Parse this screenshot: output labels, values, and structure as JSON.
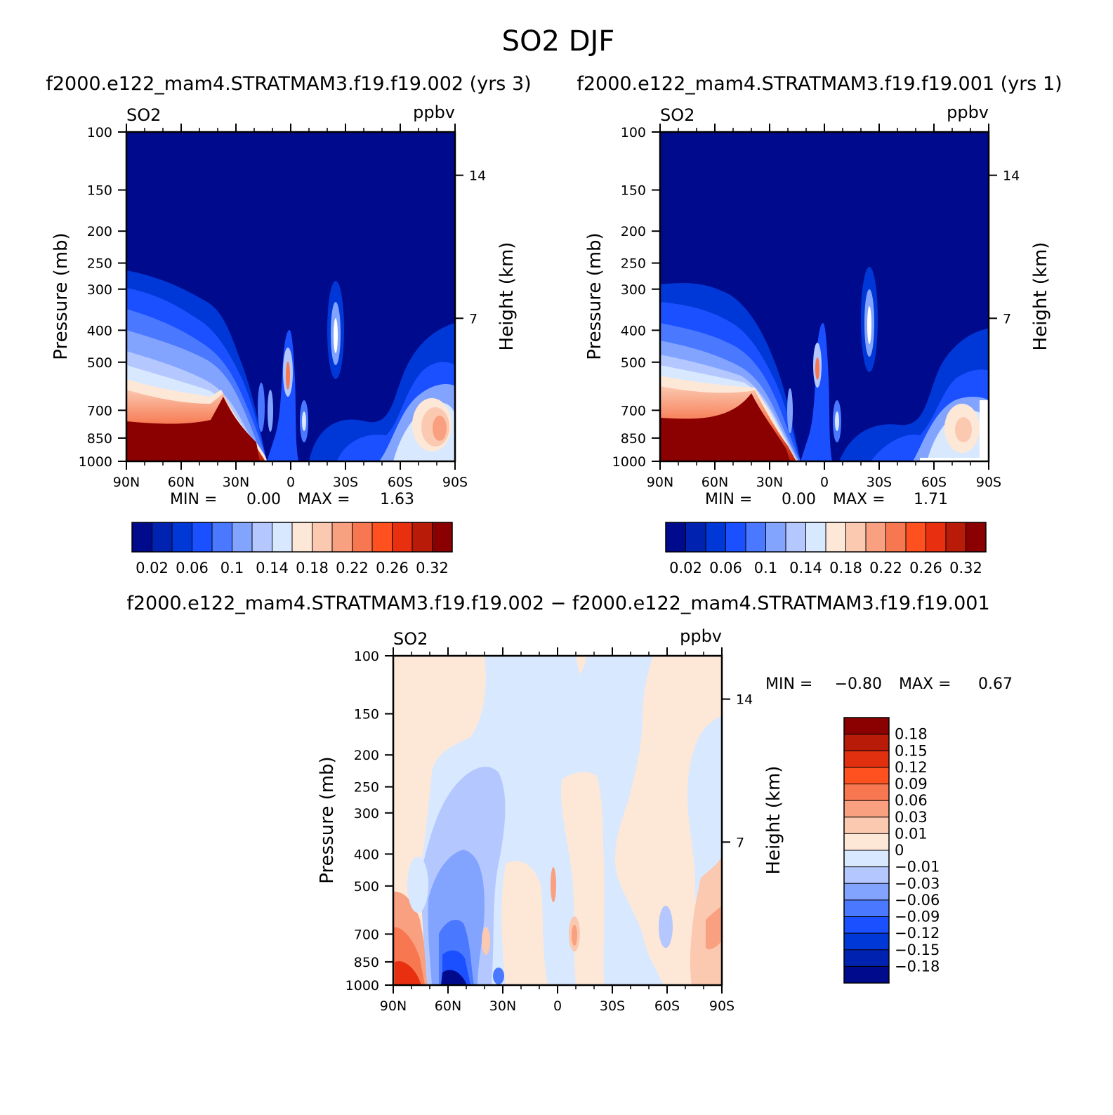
{
  "page": {
    "title": "SO2 DJF",
    "case_a": "f2000.e122_mam4.STRATMAM3.f19.f19.002",
    "case_b": "f2000.e122_mam4.STRATMAM3.f19.f19.001",
    "panel_a_title": "f2000.e122_mam4.STRATMAM3.f19.f19.002  (yrs  3)",
    "panel_b_title": "f2000.e122_mam4.STRATMAM3.f19.f19.001  (yrs  1)",
    "diff_title": "f2000.e122_mam4.STRATMAM3.f19.f19.002  −  f2000.e122_mam4.STRATMAM3.f19.f19.001"
  },
  "chart_data": [
    {
      "id": "panel_a",
      "type": "heatmap",
      "variable": "SO2",
      "units": "ppbv",
      "ylabel": "Pressure  (mb)",
      "ylabel_right": "Height  (km)",
      "yticks": [
        "100",
        "150",
        "200",
        "250",
        "300",
        "400",
        "500",
        "700",
        "850",
        "1000"
      ],
      "ytick_values": [
        100,
        150,
        200,
        250,
        300,
        400,
        500,
        700,
        850,
        1000
      ],
      "right_ticks": [
        "14",
        "7"
      ],
      "right_tick_values": [
        14,
        7
      ],
      "xticks": [
        "90N",
        "60N",
        "30N",
        "0",
        "30S",
        "60S",
        "90S"
      ],
      "xtick_values": [
        90,
        60,
        30,
        0,
        -30,
        -60,
        -90
      ],
      "ylim": [
        100,
        1000
      ],
      "xlim": [
        90,
        -90
      ],
      "min_label": "MIN =",
      "min_value": "0.00",
      "max_label": "MAX =",
      "max_value": "1.63",
      "colorbar_labels": [
        "0.02",
        "0.06",
        "0.1",
        "0.14",
        "0.18",
        "0.22",
        "0.26",
        "0.32"
      ],
      "levels": [
        0.02,
        0.04,
        0.06,
        0.08,
        0.1,
        0.12,
        0.14,
        0.16,
        0.18,
        0.2,
        0.22,
        0.24,
        0.26,
        0.28,
        0.32
      ],
      "colors": [
        "#000a8c",
        "#0022b0",
        "#0038d8",
        "#1a50ff",
        "#4a78ff",
        "#82a4ff",
        "#b4c8ff",
        "#d8e8ff",
        "#fde8d8",
        "#fbc8b0",
        "#f8a080",
        "#f77850",
        "#ff5020",
        "#e83010",
        "#b81c08",
        "#8b0000"
      ]
    },
    {
      "id": "panel_b",
      "type": "heatmap",
      "variable": "SO2",
      "units": "ppbv",
      "ylabel": "Pressure  (mb)",
      "ylabel_right": "Height  (km)",
      "yticks": [
        "100",
        "150",
        "200",
        "250",
        "300",
        "400",
        "500",
        "700",
        "850",
        "1000"
      ],
      "ytick_values": [
        100,
        150,
        200,
        250,
        300,
        400,
        500,
        700,
        850,
        1000
      ],
      "right_ticks": [
        "14",
        "7"
      ],
      "right_tick_values": [
        14,
        7
      ],
      "xticks": [
        "90N",
        "60N",
        "30N",
        "0",
        "30S",
        "60S",
        "90S"
      ],
      "xtick_values": [
        90,
        60,
        30,
        0,
        -30,
        -60,
        -90
      ],
      "ylim": [
        100,
        1000
      ],
      "xlim": [
        90,
        -90
      ],
      "min_label": "MIN =",
      "min_value": "0.00",
      "max_label": "MAX =",
      "max_value": "1.71",
      "colorbar_labels": [
        "0.02",
        "0.06",
        "0.1",
        "0.14",
        "0.18",
        "0.22",
        "0.26",
        "0.32"
      ],
      "levels": [
        0.02,
        0.04,
        0.06,
        0.08,
        0.1,
        0.12,
        0.14,
        0.16,
        0.18,
        0.2,
        0.22,
        0.24,
        0.26,
        0.28,
        0.32
      ],
      "colors": [
        "#000a8c",
        "#0022b0",
        "#0038d8",
        "#1a50ff",
        "#4a78ff",
        "#82a4ff",
        "#b4c8ff",
        "#d8e8ff",
        "#fde8d8",
        "#fbc8b0",
        "#f8a080",
        "#f77850",
        "#ff5020",
        "#e83010",
        "#b81c08",
        "#8b0000"
      ]
    },
    {
      "id": "diff",
      "type": "heatmap",
      "variable": "SO2",
      "units": "ppbv",
      "ylabel": "Pressure  (mb)",
      "ylabel_right": "Height  (km)",
      "yticks": [
        "100",
        "150",
        "200",
        "250",
        "300",
        "400",
        "500",
        "700",
        "850",
        "1000"
      ],
      "ytick_values": [
        100,
        150,
        200,
        250,
        300,
        400,
        500,
        700,
        850,
        1000
      ],
      "right_ticks": [
        "14",
        "7"
      ],
      "right_tick_values": [
        14,
        7
      ],
      "xticks": [
        "90N",
        "60N",
        "30N",
        "0",
        "30S",
        "60S",
        "90S"
      ],
      "xtick_values": [
        90,
        60,
        30,
        0,
        -30,
        -60,
        -90
      ],
      "ylim": [
        100,
        1000
      ],
      "xlim": [
        90,
        -90
      ],
      "min_label": "MIN =",
      "min_value": "−0.80",
      "max_label": "MAX =",
      "max_value": "0.67",
      "colorbar_labels": [
        "0.18",
        "0.15",
        "0.12",
        "0.09",
        "0.06",
        "0.03",
        "0.01",
        "0",
        "−0.01",
        "−0.03",
        "−0.06",
        "−0.09",
        "−0.12",
        "−0.15",
        "−0.18"
      ],
      "levels": [
        0.18,
        0.15,
        0.12,
        0.09,
        0.06,
        0.03,
        0.01,
        0,
        -0.01,
        -0.03,
        -0.06,
        -0.09,
        -0.12,
        -0.15,
        -0.18
      ],
      "colors": [
        "#8b0000",
        "#b81c08",
        "#e03010",
        "#ff5020",
        "#f77850",
        "#f8a080",
        "#fbc8b0",
        "#fde8d8",
        "#d8e8ff",
        "#b4c8ff",
        "#82a4ff",
        "#4a78ff",
        "#1a50ff",
        "#0038d8",
        "#0022b0",
        "#000a8c"
      ]
    }
  ]
}
